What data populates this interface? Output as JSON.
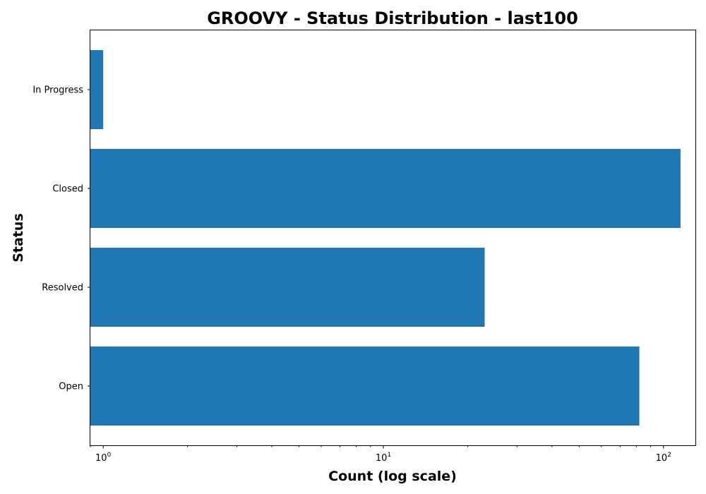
{
  "chart_data": {
    "type": "bar",
    "orientation": "horizontal",
    "title": "GROOVY - Status Distribution - last100",
    "xlabel": "Count (log scale)",
    "ylabel": "Status",
    "xscale": "log",
    "xlim": [
      0.9,
      130
    ],
    "categories": [
      "Open",
      "Resolved",
      "Closed",
      "In Progress"
    ],
    "values": [
      82,
      23,
      115,
      1
    ],
    "bar_color": "#1f77b4",
    "grid": false,
    "x_ticks": [
      {
        "value": 1,
        "base": "10",
        "exp": "0"
      },
      {
        "value": 10,
        "base": "10",
        "exp": "1"
      },
      {
        "value": 100,
        "base": "10",
        "exp": "2"
      }
    ]
  }
}
